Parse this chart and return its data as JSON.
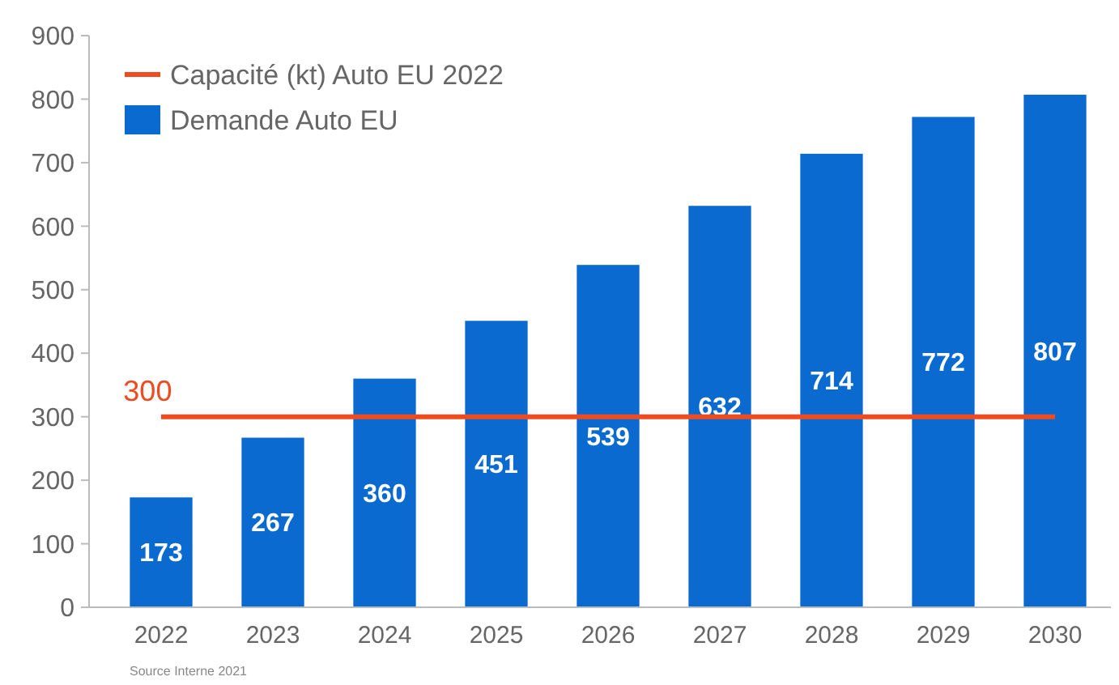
{
  "chart_data": {
    "type": "bar",
    "categories": [
      "2022",
      "2023",
      "2024",
      "2025",
      "2026",
      "2027",
      "2028",
      "2029",
      "2030"
    ],
    "series": [
      {
        "name": "Capacité (kt) Auto EU 2022",
        "type": "line",
        "color": "#ee4b21",
        "values": [
          300,
          300,
          300,
          300,
          300,
          300,
          300,
          300,
          300
        ]
      },
      {
        "name": "Demande Auto EU",
        "color": "#0a6ad0",
        "values": [
          173,
          267,
          360,
          451,
          539,
          632,
          714,
          772,
          807
        ],
        "data_labels": true
      }
    ],
    "ylim": [
      0,
      900
    ],
    "yticks": [
      0,
      100,
      200,
      300,
      400,
      500,
      600,
      700,
      800,
      900
    ],
    "grid": false,
    "legend": "top left",
    "line_style": "solid",
    "annotations": [
      {
        "text": "300",
        "x": "2022",
        "y": 300
      },
      "Source Interne 2021"
    ]
  }
}
